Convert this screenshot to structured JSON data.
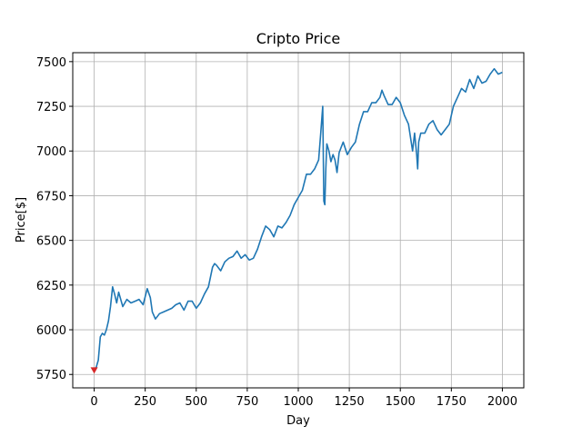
{
  "chart_data": {
    "type": "line",
    "title": "Cripto Price",
    "xlabel": "Day",
    "ylabel": "Price[$]",
    "xlim": [
      -105,
      2105
    ],
    "ylim": [
      5675,
      7550
    ],
    "xticks": [
      0,
      250,
      500,
      750,
      1000,
      1250,
      1500,
      1750,
      2000
    ],
    "yticks": [
      5750,
      6000,
      6250,
      6500,
      6750,
      7000,
      7250,
      7500
    ],
    "grid": true,
    "series": [
      {
        "color": "#1f77b4",
        "x": [
          0,
          10,
          20,
          30,
          40,
          50,
          60,
          70,
          80,
          90,
          100,
          110,
          120,
          140,
          160,
          180,
          200,
          220,
          240,
          260,
          275,
          285,
          300,
          320,
          340,
          360,
          380,
          400,
          420,
          440,
          460,
          480,
          500,
          520,
          540,
          560,
          580,
          590,
          600,
          620,
          640,
          660,
          680,
          700,
          720,
          740,
          760,
          780,
          800,
          820,
          840,
          860,
          880,
          900,
          920,
          940,
          960,
          980,
          1000,
          1020,
          1040,
          1060,
          1080,
          1100,
          1110,
          1120,
          1125,
          1130,
          1135,
          1140,
          1150,
          1160,
          1170,
          1180,
          1190,
          1200,
          1210,
          1220,
          1240,
          1260,
          1280,
          1300,
          1320,
          1340,
          1360,
          1380,
          1400,
          1410,
          1420,
          1440,
          1460,
          1480,
          1500,
          1520,
          1540,
          1560,
          1570,
          1580,
          1585,
          1590,
          1600,
          1620,
          1640,
          1660,
          1680,
          1700,
          1720,
          1740,
          1760,
          1780,
          1800,
          1820,
          1840,
          1860,
          1880,
          1900,
          1920,
          1940,
          1960,
          1980,
          2000
        ],
        "values": [
          5775,
          5790,
          5830,
          5960,
          5980,
          5970,
          6000,
          6050,
          6130,
          6240,
          6200,
          6150,
          6210,
          6130,
          6170,
          6150,
          6160,
          6170,
          6140,
          6230,
          6180,
          6100,
          6060,
          6090,
          6100,
          6110,
          6120,
          6140,
          6150,
          6110,
          6160,
          6160,
          6120,
          6150,
          6200,
          6240,
          6350,
          6370,
          6360,
          6330,
          6380,
          6400,
          6410,
          6440,
          6400,
          6420,
          6390,
          6400,
          6450,
          6520,
          6580,
          6560,
          6520,
          6580,
          6570,
          6600,
          6640,
          6700,
          6740,
          6780,
          6870,
          6870,
          6900,
          6950,
          7100,
          7250,
          6720,
          6700,
          6900,
          7040,
          7000,
          6940,
          6980,
          6950,
          6880,
          6990,
          7020,
          7050,
          6980,
          7020,
          7050,
          7150,
          7220,
          7220,
          7270,
          7270,
          7300,
          7340,
          7310,
          7260,
          7260,
          7300,
          7270,
          7200,
          7150,
          7000,
          7100,
          6980,
          6900,
          7050,
          7100,
          7100,
          7150,
          7170,
          7120,
          7090,
          7120,
          7150,
          7250,
          7300,
          7350,
          7330,
          7400,
          7350,
          7420,
          7380,
          7390,
          7430,
          7460,
          7430,
          7440
        ]
      }
    ],
    "markers": [
      {
        "x": 0,
        "y": 5775,
        "shape": "triangle-down",
        "color": "#d62728"
      }
    ]
  }
}
